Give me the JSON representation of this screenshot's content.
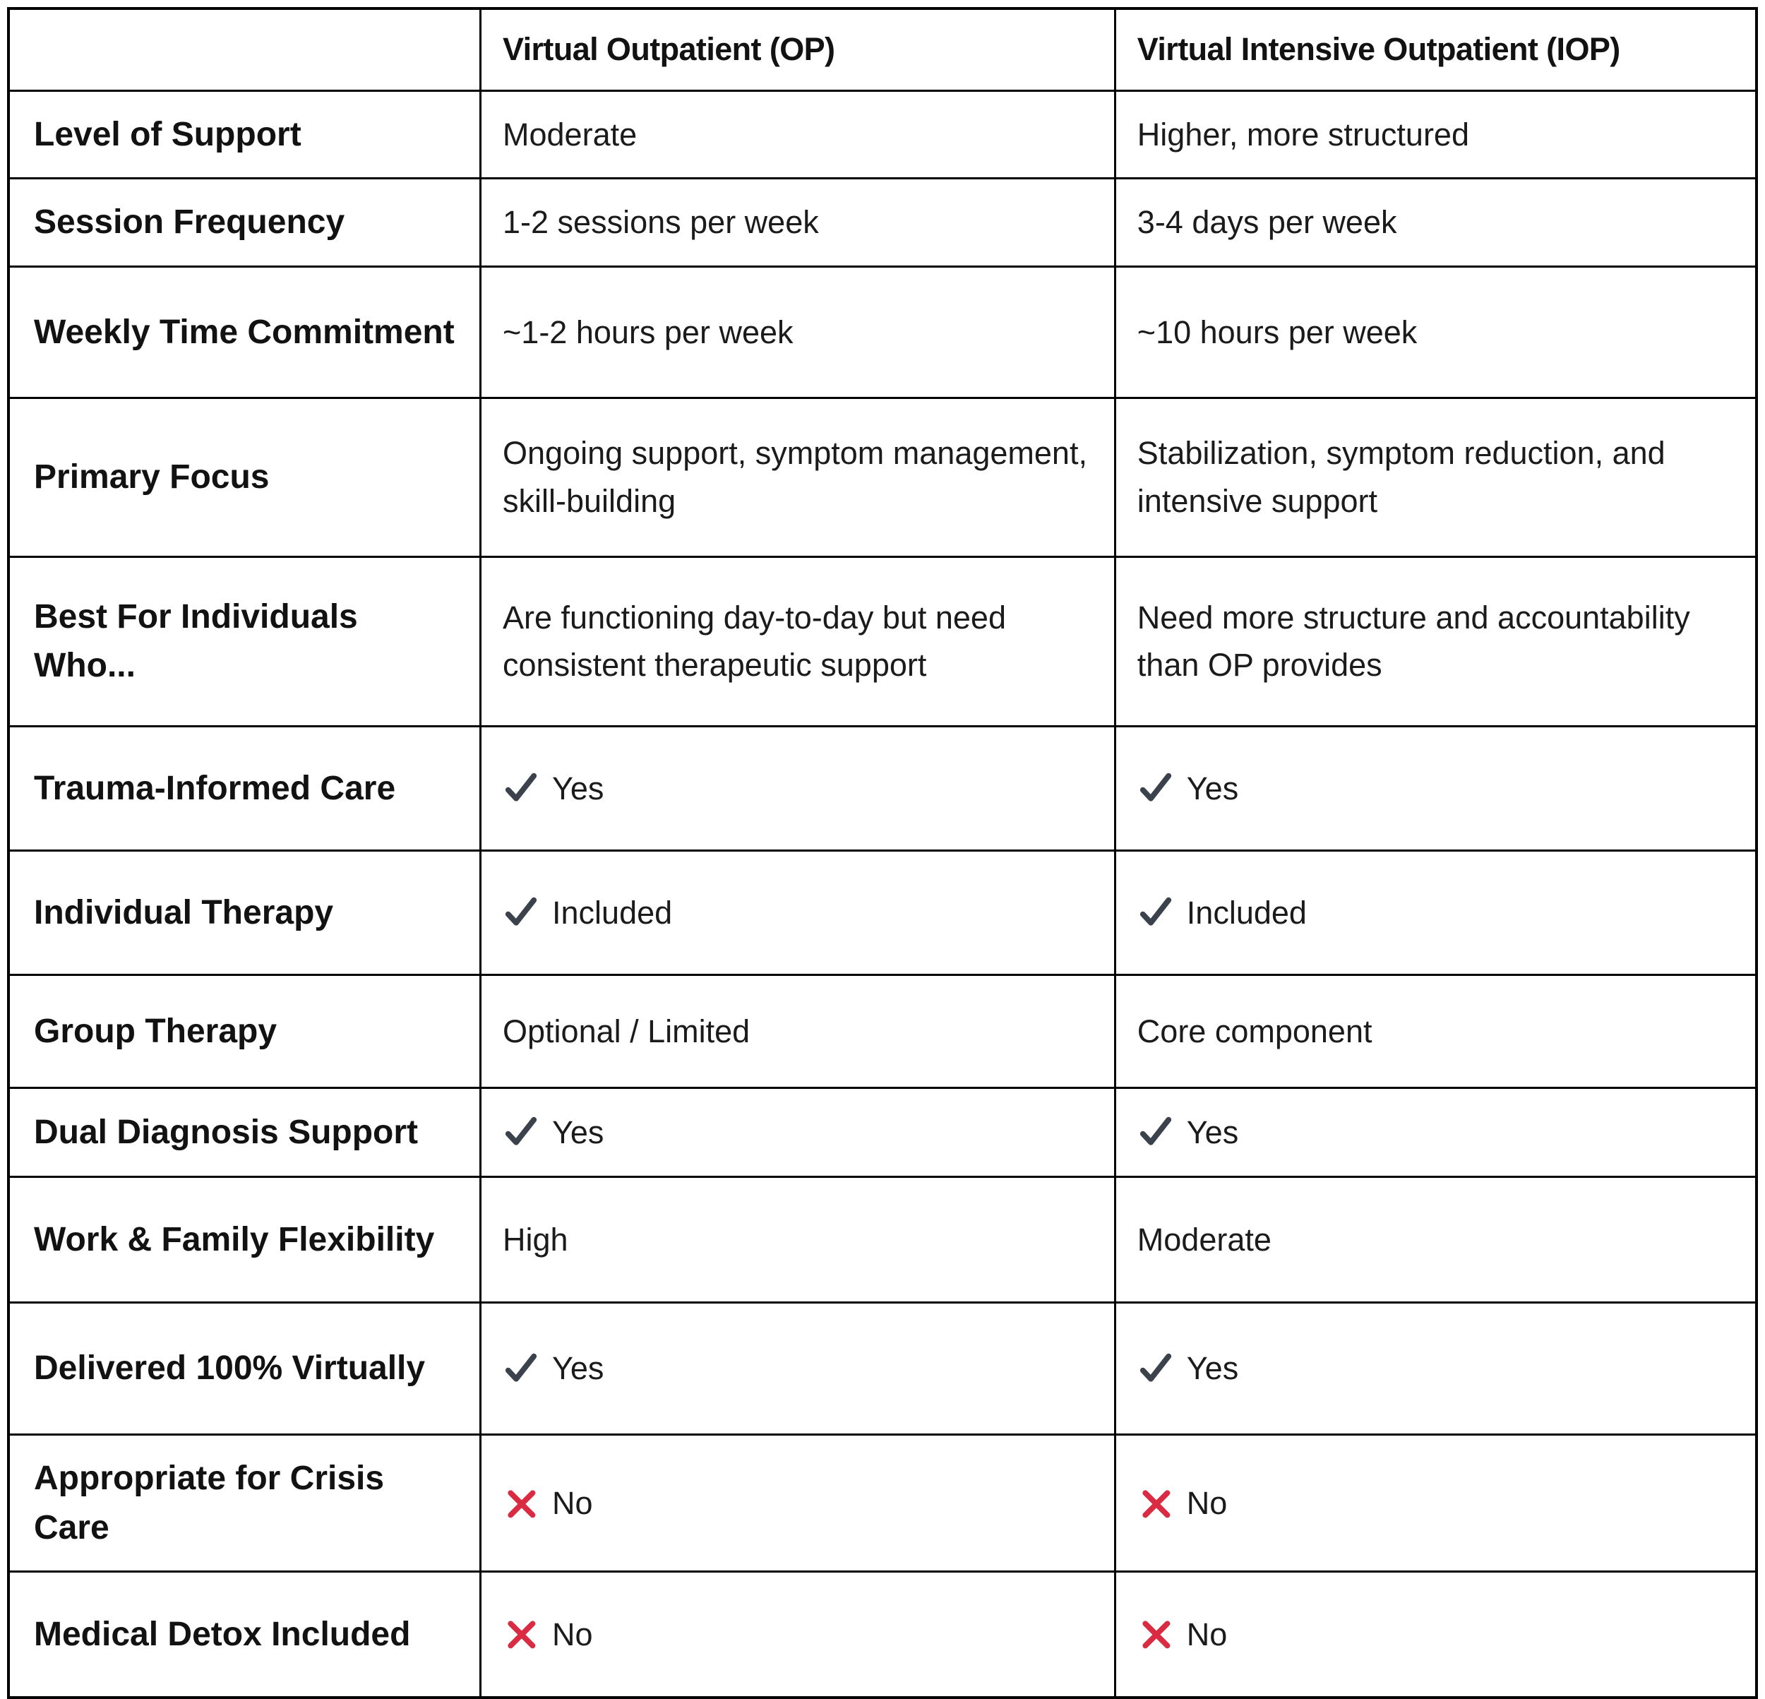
{
  "table": {
    "columns": [
      "",
      "Virtual Outpatient (OP)",
      "Virtual Intensive Outpatient (IOP)"
    ],
    "rows": [
      {
        "label": "Level of Support",
        "op": {
          "icon": null,
          "text": "Moderate"
        },
        "iop": {
          "icon": null,
          "text": "Higher, more structured"
        }
      },
      {
        "label": "Session Frequency",
        "op": {
          "icon": null,
          "text": "1-2 sessions per week"
        },
        "iop": {
          "icon": null,
          "text": "3-4 days per week"
        }
      },
      {
        "label": "Weekly Time Commitment",
        "op": {
          "icon": null,
          "text": "~1-2 hours per week"
        },
        "iop": {
          "icon": null,
          "text": "~10 hours per week"
        }
      },
      {
        "label": "Primary Focus",
        "op": {
          "icon": null,
          "text": "Ongoing support, symptom management, skill-building"
        },
        "iop": {
          "icon": null,
          "text": "Stabilization, symptom reduction, and intensive support"
        }
      },
      {
        "label": "Best For Individuals Who...",
        "op": {
          "icon": null,
          "text": "Are functioning day-to-day but need consistent therapeutic support"
        },
        "iop": {
          "icon": null,
          "text": "Need more structure and accountability than OP provides"
        }
      },
      {
        "label": "Trauma-Informed Care",
        "op": {
          "icon": "check",
          "text": "Yes"
        },
        "iop": {
          "icon": "check",
          "text": "Yes"
        }
      },
      {
        "label": "Individual Therapy",
        "op": {
          "icon": "check",
          "text": "Included"
        },
        "iop": {
          "icon": "check",
          "text": "Included"
        }
      },
      {
        "label": "Group Therapy",
        "op": {
          "icon": null,
          "text": "Optional / Limited"
        },
        "iop": {
          "icon": null,
          "text": "Core component"
        }
      },
      {
        "label": "Dual Diagnosis Support",
        "op": {
          "icon": "check",
          "text": "Yes"
        },
        "iop": {
          "icon": "check",
          "text": "Yes"
        }
      },
      {
        "label": "Work & Family Flexibility",
        "op": {
          "icon": null,
          "text": "High"
        },
        "iop": {
          "icon": null,
          "text": "Moderate"
        }
      },
      {
        "label": "Delivered 100% Virtually",
        "op": {
          "icon": "check",
          "text": "Yes"
        },
        "iop": {
          "icon": "check",
          "text": "Yes"
        }
      },
      {
        "label": "Appropriate for Crisis Care",
        "op": {
          "icon": "cross",
          "text": "No"
        },
        "iop": {
          "icon": "cross",
          "text": "No"
        }
      },
      {
        "label": "Medical Detox Included",
        "op": {
          "icon": "cross",
          "text": "No"
        },
        "iop": {
          "icon": "cross",
          "text": "No"
        }
      }
    ],
    "colors": {
      "check": "#3b424c",
      "cross": "#d92b41",
      "border": "#000000"
    }
  }
}
